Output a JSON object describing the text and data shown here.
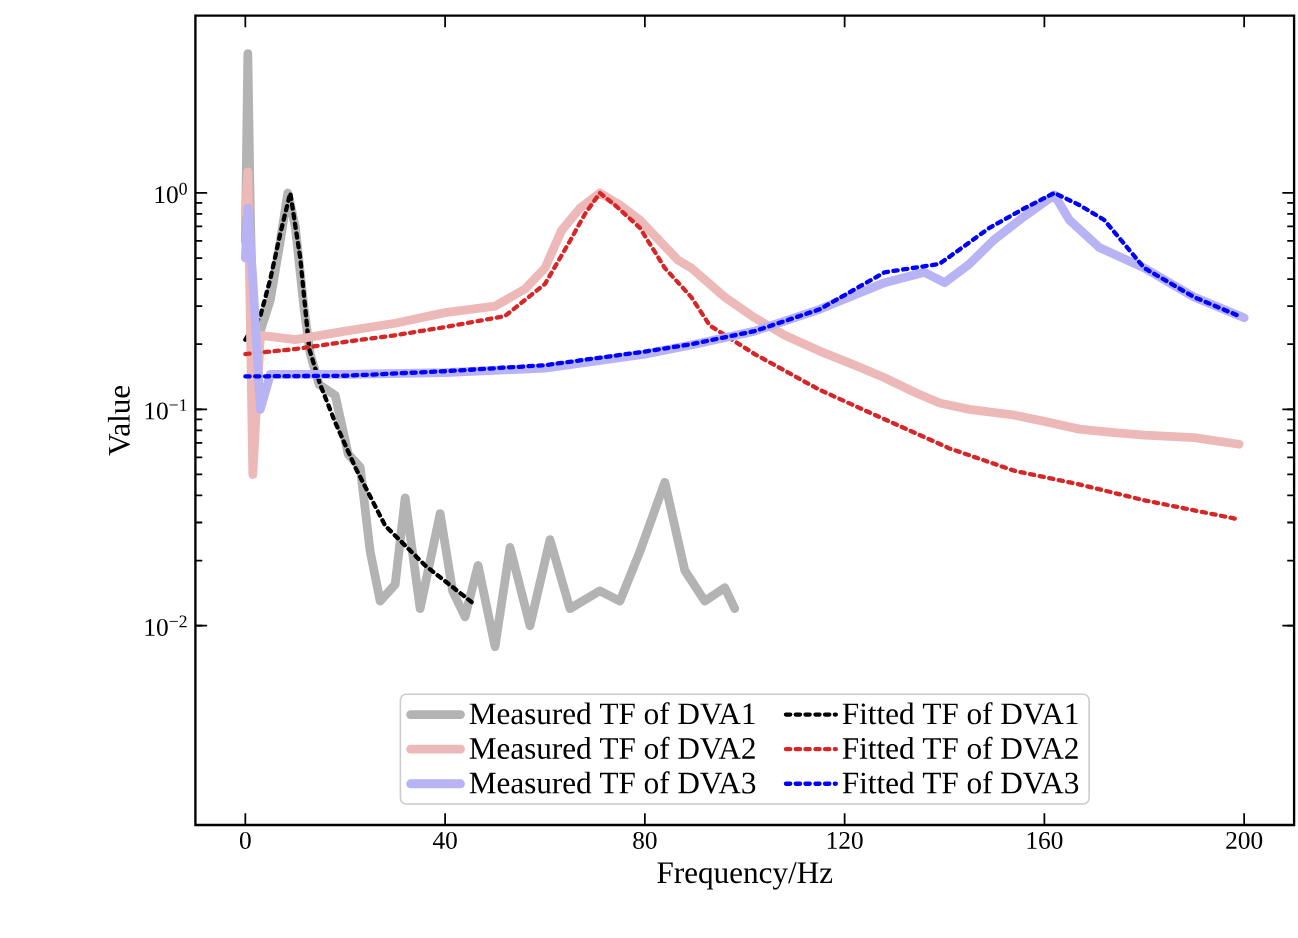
{
  "chart_data": {
    "type": "line",
    "xlabel": "Frequency/Hz",
    "ylabel": "Value",
    "log": "y",
    "xlim": [
      -10,
      210
    ],
    "xticks": [
      0,
      40,
      80,
      120,
      160,
      200
    ],
    "ylim": [
      0.0012,
      6.6
    ],
    "yticks": [
      {
        "value": 0.01,
        "label": "10$^{−2}$"
      },
      {
        "value": 0.1,
        "label": "10$^{−1}$"
      },
      {
        "value": 1,
        "label": "10$^{0}$"
      }
    ],
    "legend": "bottom",
    "series": [
      {
        "name": "Measured TF of DVA1",
        "color": "#b3b3b3",
        "line_style": "solid",
        "x": [
          0,
          0.5,
          1,
          2,
          3,
          5,
          7,
          8.5,
          10,
          11.7,
          13,
          14.8,
          18,
          20.6,
          23,
          25,
          27,
          30,
          32,
          35,
          39,
          41.5,
          44,
          46.6,
          50,
          53,
          57,
          61,
          65,
          71,
          75,
          79,
          84,
          88,
          92,
          96,
          98
        ],
        "values": [
          0.6,
          4.4,
          0.8,
          0.087,
          0.23,
          0.32,
          0.6,
          1.0,
          0.7,
          0.3,
          0.18,
          0.13,
          0.116,
          0.062,
          0.054,
          0.022,
          0.013,
          0.0155,
          0.039,
          0.012,
          0.033,
          0.0145,
          0.011,
          0.019,
          0.008,
          0.023,
          0.01,
          0.025,
          0.012,
          0.0145,
          0.013,
          0.022,
          0.046,
          0.018,
          0.013,
          0.015,
          0.012
        ]
      },
      {
        "name": "Measured TF of DVA2",
        "color": "#edb8b8",
        "line_style": "solid",
        "x": [
          0,
          0.5,
          1.5,
          3,
          10,
          20,
          30,
          40,
          50,
          56,
          60,
          63.3,
          67,
          71,
          75,
          79,
          86.6,
          89.3,
          96,
          102,
          108,
          115,
          122,
          128,
          134,
          139,
          145,
          154,
          160,
          167,
          174,
          180,
          190,
          199
        ],
        "values": [
          0.8,
          1.25,
          0.05,
          0.22,
          0.21,
          0.23,
          0.25,
          0.28,
          0.3,
          0.36,
          0.45,
          0.67,
          0.85,
          1.0,
          0.88,
          0.75,
          0.49,
          0.45,
          0.33,
          0.265,
          0.22,
          0.186,
          0.16,
          0.14,
          0.12,
          0.107,
          0.1,
          0.094,
          0.088,
          0.081,
          0.078,
          0.076,
          0.074,
          0.069
        ]
      },
      {
        "name": "Measured TF of DVA3",
        "color": "#b8b3f5",
        "line_style": "solid",
        "x": [
          0,
          0.5,
          1.5,
          3,
          5,
          20,
          40,
          60,
          80,
          90,
          102,
          115,
          128,
          136,
          140,
          145,
          150,
          156,
          162,
          165,
          171,
          180,
          190,
          200
        ],
        "values": [
          0.5,
          0.85,
          0.4,
          0.1,
          0.145,
          0.145,
          0.148,
          0.155,
          0.18,
          0.2,
          0.23,
          0.29,
          0.385,
          0.43,
          0.385,
          0.47,
          0.61,
          0.78,
          0.98,
          0.75,
          0.56,
          0.45,
          0.33,
          0.265
        ]
      },
      {
        "name": "Fitted TF of DVA1",
        "color": "#000000",
        "line_style": "dotted",
        "x": [
          0,
          3,
          5,
          7,
          9,
          11,
          12.8,
          15,
          18,
          22,
          28,
          36,
          46
        ],
        "values": [
          0.21,
          0.27,
          0.4,
          0.65,
          1.0,
          0.5,
          0.19,
          0.13,
          0.087,
          0.054,
          0.029,
          0.019,
          0.0125
        ]
      },
      {
        "name": "Fitted TF of DVA2",
        "color": "#d62728",
        "line_style": "dotted",
        "x": [
          0,
          10,
          20,
          30,
          40,
          52,
          60,
          65,
          68,
          71,
          74,
          79,
          84,
          89.3,
          93,
          102,
          115,
          128,
          141,
          154,
          167,
          180,
          199
        ],
        "values": [
          0.18,
          0.19,
          0.205,
          0.22,
          0.24,
          0.27,
          0.38,
          0.6,
          0.8,
          1.0,
          0.88,
          0.69,
          0.45,
          0.33,
          0.244,
          0.18,
          0.123,
          0.09,
          0.066,
          0.052,
          0.045,
          0.038,
          0.031
        ]
      },
      {
        "name": "Fitted TF of DVA3",
        "color": "#0000ff",
        "line_style": "dotted",
        "x": [
          0,
          20,
          40,
          60,
          80,
          89.3,
          102,
          115,
          128,
          139,
          149,
          156,
          162,
          167,
          172,
          180,
          190,
          199
        ],
        "values": [
          0.142,
          0.143,
          0.15,
          0.16,
          0.185,
          0.2,
          0.23,
          0.29,
          0.43,
          0.47,
          0.69,
          0.85,
          1.0,
          0.88,
          0.75,
          0.45,
          0.33,
          0.27
        ]
      }
    ]
  }
}
